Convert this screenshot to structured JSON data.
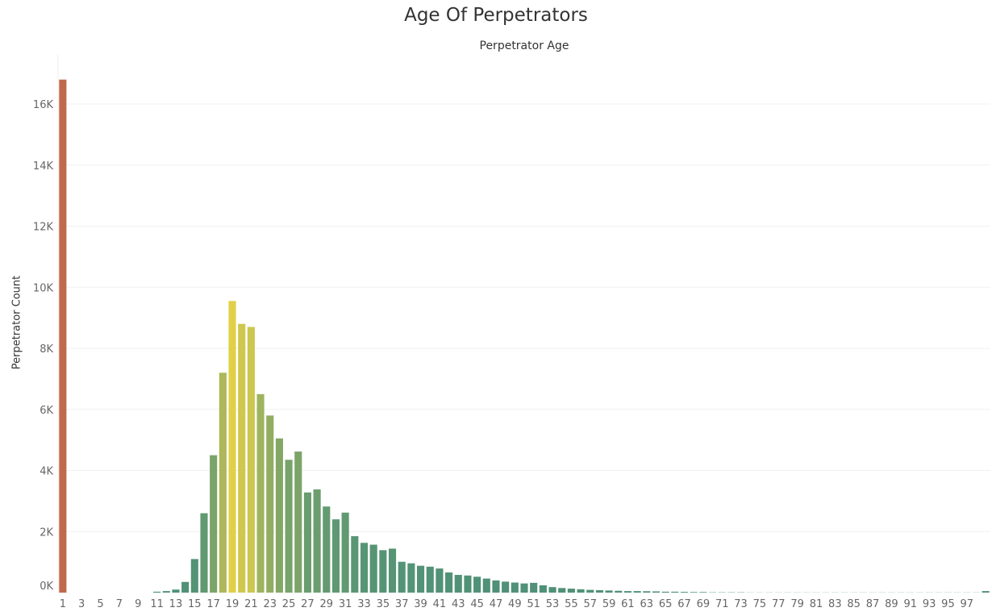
{
  "chart_data": {
    "type": "bar",
    "title": "Age Of Perpetrators",
    "x_header": "Perpetrator Age",
    "ylabel": "Perpetrator Count",
    "ylim": [
      0,
      17000
    ],
    "yticks": [
      0,
      2000,
      4000,
      6000,
      8000,
      10000,
      12000,
      14000,
      16000
    ],
    "ytick_labels": [
      "0K",
      "2K",
      "4K",
      "6K",
      "8K",
      "10K",
      "12K",
      "14K",
      "16K"
    ],
    "categories": [
      1,
      2,
      3,
      4,
      5,
      6,
      7,
      8,
      9,
      10,
      11,
      12,
      13,
      14,
      15,
      16,
      17,
      18,
      19,
      20,
      21,
      22,
      23,
      24,
      25,
      26,
      27,
      28,
      29,
      30,
      31,
      32,
      33,
      34,
      35,
      36,
      37,
      38,
      39,
      40,
      41,
      42,
      43,
      44,
      45,
      46,
      47,
      48,
      49,
      50,
      51,
      52,
      53,
      54,
      55,
      56,
      57,
      58,
      59,
      60,
      61,
      62,
      63,
      64,
      65,
      66,
      67,
      68,
      69,
      70,
      71,
      72,
      73,
      74,
      75,
      76,
      77,
      78,
      79,
      80,
      81,
      82,
      83,
      84,
      85,
      86,
      87,
      88,
      89,
      90,
      91,
      92,
      93,
      94,
      95,
      96,
      97,
      98,
      99
    ],
    "xtick_labels": [
      "1",
      "3",
      "5",
      "7",
      "9",
      "11",
      "13",
      "15",
      "17",
      "19",
      "21",
      "23",
      "25",
      "27",
      "29",
      "31",
      "33",
      "35",
      "37",
      "39",
      "41",
      "43",
      "45",
      "47",
      "49",
      "51",
      "53",
      "55",
      "57",
      "59",
      "61",
      "63",
      "65",
      "67",
      "69",
      "71",
      "73",
      "75",
      "77",
      "79",
      "81",
      "83",
      "85",
      "87",
      "89",
      "91",
      "93",
      "95",
      "97"
    ],
    "values": [
      16800,
      0,
      0,
      0,
      0,
      0,
      0,
      0,
      0,
      0,
      30,
      50,
      100,
      350,
      1100,
      2600,
      4500,
      7200,
      9550,
      8800,
      8700,
      6500,
      5800,
      5050,
      4350,
      4620,
      3280,
      3380,
      2820,
      2400,
      2620,
      1850,
      1630,
      1570,
      1390,
      1440,
      1010,
      960,
      880,
      850,
      790,
      660,
      580,
      560,
      520,
      460,
      400,
      360,
      330,
      300,
      320,
      240,
      180,
      150,
      130,
      110,
      90,
      80,
      70,
      60,
      50,
      50,
      45,
      40,
      30,
      30,
      25,
      20,
      20,
      10,
      10,
      10,
      10,
      5,
      5,
      5,
      5,
      5,
      5,
      5,
      5,
      5,
      5,
      5,
      5,
      5,
      5,
      5,
      5,
      5,
      5,
      5,
      5,
      5,
      5,
      5,
      5,
      5,
      50
    ],
    "color_scale": [
      "#4f9177",
      "#e1cf48",
      "#c0694e"
    ]
  }
}
